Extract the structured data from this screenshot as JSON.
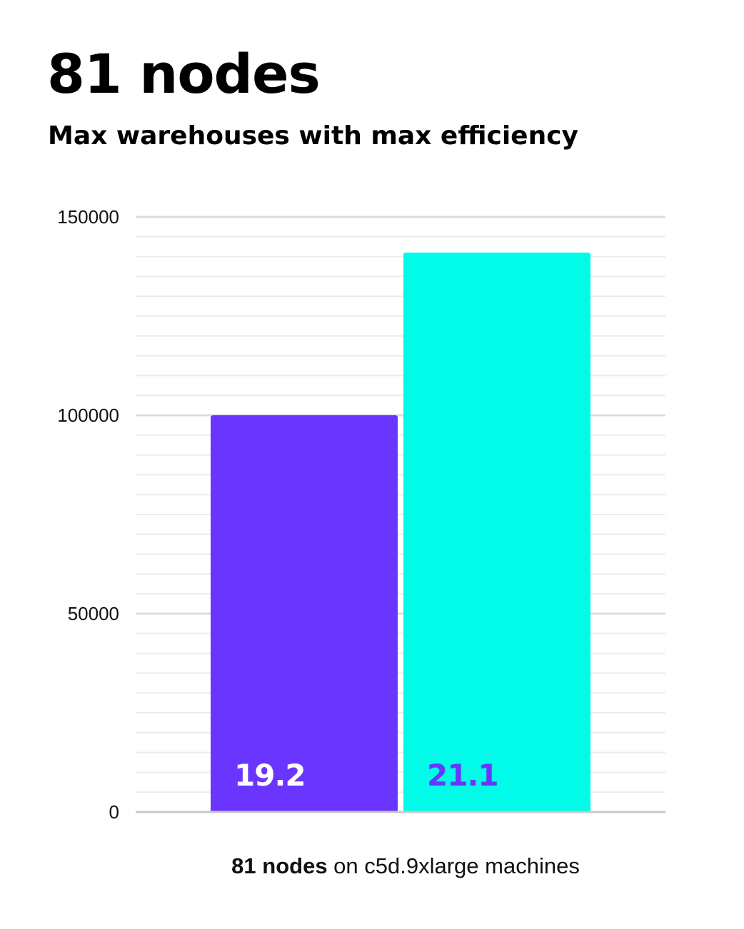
{
  "title": "81 nodes",
  "subtitle": "Max warehouses with max efficiency",
  "caption": {
    "bold": "81 nodes",
    "rest": " on c5d.9xlarge machines"
  },
  "chart_data": {
    "type": "bar",
    "title": "81 nodes",
    "subtitle": "Max warehouses with max efficiency",
    "xlabel": "81 nodes on c5d.9xlarge machines",
    "ylabel": "",
    "ylim": [
      0,
      150000
    ],
    "yticks": [
      0,
      50000,
      100000,
      150000
    ],
    "minor_grid_step": 5000,
    "grid": true,
    "legend": "none",
    "bars": [
      {
        "value": 100000,
        "label": "19.2",
        "color": "#6a35ff",
        "label_color": "#ffffff"
      },
      {
        "value": 141000,
        "label": "21.1",
        "color": "#00fbe8",
        "label_color": "#6a35ff"
      }
    ]
  }
}
